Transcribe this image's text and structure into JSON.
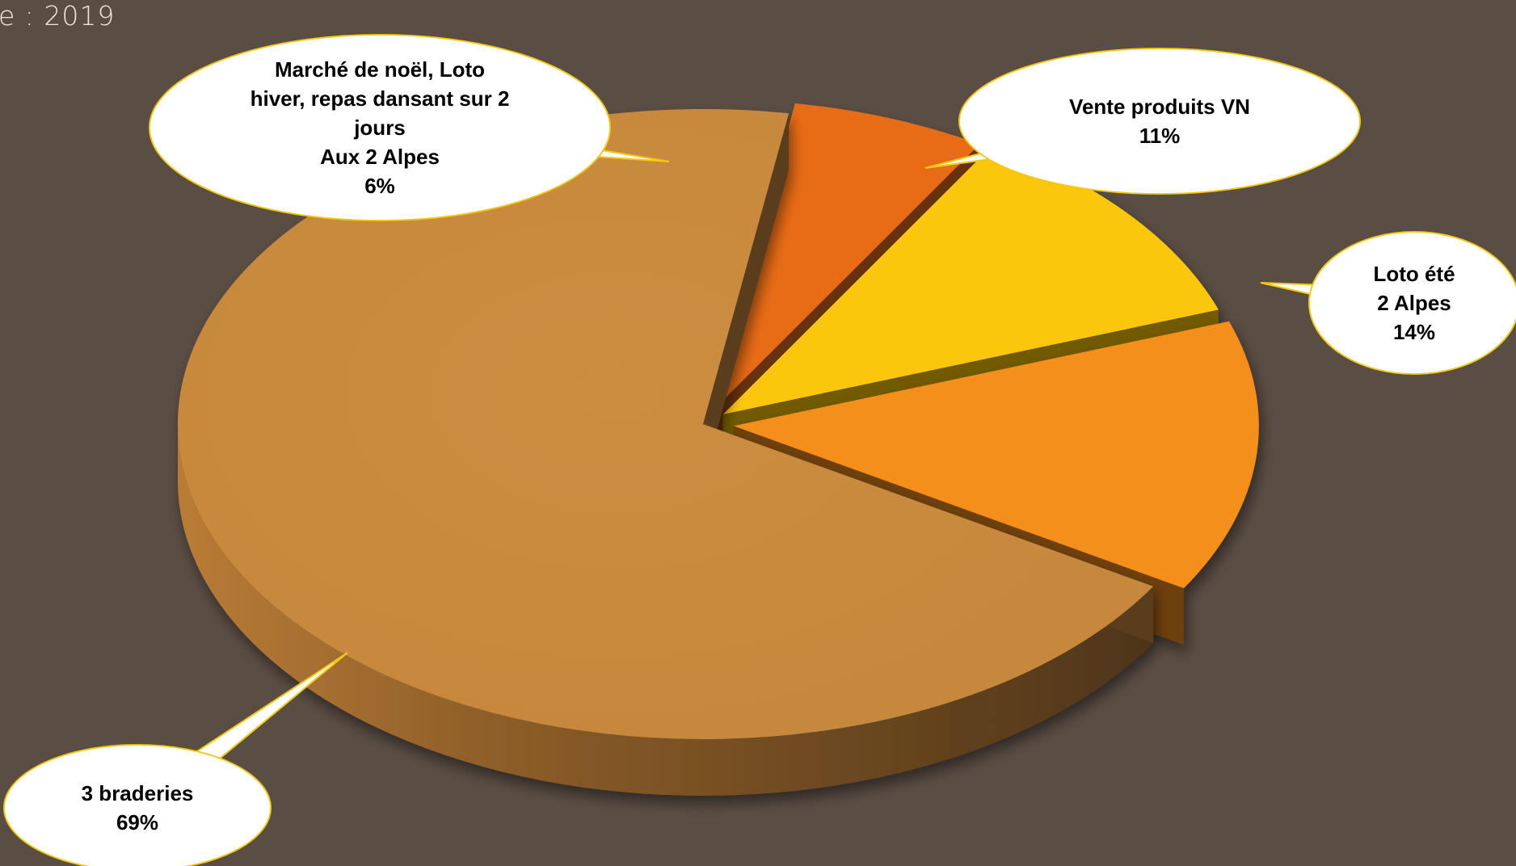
{
  "header": {
    "title": "e :  2019"
  },
  "chart_data": {
    "type": "pie",
    "style": "3d-exploded",
    "series": [
      {
        "label": "3 braderies",
        "value": 69,
        "value_label": "69%",
        "color": "#c98a3e"
      },
      {
        "label": "Marché de noël, Loto\nhiver, repas dansant sur 2\njours\nAux 2 Alpes",
        "value": 6,
        "value_label": "6%",
        "color": "#e86c14"
      },
      {
        "label": "Vente produits VN",
        "value": 11,
        "value_label": "11%",
        "color": "#fbc707"
      },
      {
        "label": "Loto été\n2 Alpes",
        "value": 14,
        "value_label": "14%",
        "color": "#f48f1f"
      }
    ],
    "callout": {
      "fill": "#ffffff",
      "border": "#f2c810"
    }
  }
}
